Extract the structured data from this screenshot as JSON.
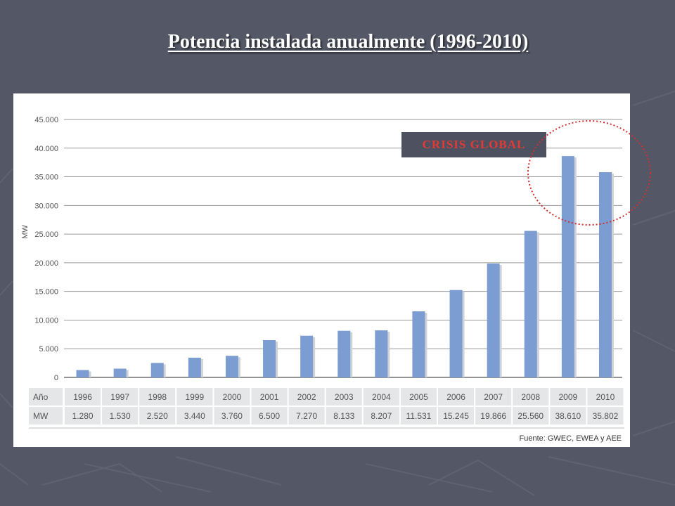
{
  "slide": {
    "title": "Potencia instalada anualmente (1996-2010)"
  },
  "annotation": {
    "label": "CRISIS GLOBAL",
    "text_color": "#e53935",
    "oval_color": "#d32f2f"
  },
  "colors": {
    "bar": "#7b9dd1",
    "background": "#545866",
    "table_cell": "#e4e6e8"
  },
  "chart_data": {
    "type": "bar",
    "categories": [
      "1996",
      "1997",
      "1998",
      "1999",
      "2000",
      "2001",
      "2002",
      "2003",
      "2004",
      "2005",
      "2006",
      "2007",
      "2008",
      "2009",
      "2010"
    ],
    "values": [
      1280,
      1530,
      2520,
      3440,
      3760,
      6500,
      7270,
      8133,
      8207,
      11531,
      15245,
      19866,
      25560,
      38610,
      35802
    ],
    "value_labels": [
      "1.280",
      "1.530",
      "2.520",
      "3.440",
      "3.760",
      "6.500",
      "7.270",
      "8.133",
      "8.207",
      "11.531",
      "15.245",
      "19.866",
      "25.560",
      "38.610",
      "35.802"
    ],
    "ylabel": "MW",
    "ylim": [
      0,
      45000
    ],
    "yticks": [
      0,
      5000,
      10000,
      15000,
      20000,
      25000,
      30000,
      35000,
      40000,
      45000
    ],
    "ytick_labels": [
      "0",
      "5.000",
      "10.000",
      "15.000",
      "20.000",
      "25.000",
      "30.000",
      "35.000",
      "40.000",
      "45.000"
    ],
    "grid": true,
    "table": {
      "row1_header": "Año",
      "row2_header": "MW"
    },
    "source": "Fuente: GWEC, EWEA y AEE"
  }
}
